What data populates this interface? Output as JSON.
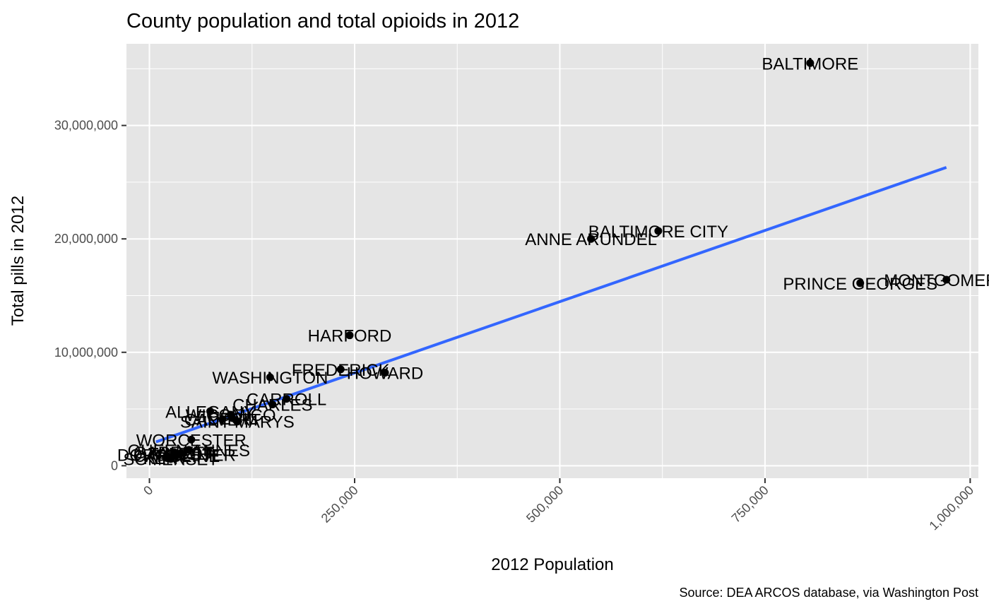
{
  "chart_data": {
    "type": "scatter",
    "title": "County population and total opioids in 2012",
    "xlabel": "2012 Population",
    "ylabel": "Total pills in 2012",
    "caption": "Source: DEA ARCOS database, via Washington Post",
    "xlim": [
      -28000,
      1010000
    ],
    "ylim": [
      -1100000,
      37200000
    ],
    "x_ticks": [
      0,
      250000,
      500000,
      750000,
      1000000
    ],
    "x_tick_labels": [
      "0",
      "250,000",
      "500,000",
      "750,000",
      "1,000,000"
    ],
    "y_ticks": [
      0,
      10000000,
      20000000,
      30000000
    ],
    "y_tick_labels": [
      "0",
      "10,000,000",
      "20,000,000",
      "30,000,000"
    ],
    "grid": true,
    "colors": {
      "panel": "#e5e5e5",
      "grid": "#ffffff",
      "points": "#000000",
      "trend": "#3366ff"
    },
    "trend_line": {
      "x": [
        8000,
        971000
      ],
      "y": [
        2100000,
        26300000
      ]
    },
    "points": [
      {
        "label": "BALTIMORE",
        "x": 805000,
        "y": 35500000
      },
      {
        "label": "BALTIMORE CITY",
        "x": 620000,
        "y": 20700000
      },
      {
        "label": "ANNE ARUNDEL",
        "x": 538000,
        "y": 20000000
      },
      {
        "label": "PRINCE GEORGES",
        "x": 866000,
        "y": 16100000
      },
      {
        "label": "MONTGOMERY",
        "x": 971000,
        "y": 16400000
      },
      {
        "label": "HARFORD",
        "x": 244000,
        "y": 11500000
      },
      {
        "label": "FREDERICK",
        "x": 233000,
        "y": 8500000
      },
      {
        "label": "HOWARD",
        "x": 287000,
        "y": 8200000
      },
      {
        "label": "WASHINGTON",
        "x": 147000,
        "y": 7800000
      },
      {
        "label": "CARROLL",
        "x": 167000,
        "y": 5900000
      },
      {
        "label": "CHARLES",
        "x": 150000,
        "y": 5400000
      },
      {
        "label": "ALLEGANY",
        "x": 74000,
        "y": 4800000
      },
      {
        "label": "WICOMICO",
        "x": 99000,
        "y": 4500000
      },
      {
        "label": "CECIL",
        "x": 101000,
        "y": 4200000
      },
      {
        "label": "SAINT MARYS",
        "x": 107000,
        "y": 3900000
      },
      {
        "label": "CALVERT",
        "x": 89000,
        "y": 4100000
      },
      {
        "label": "WORCESTER",
        "x": 51000,
        "y": 2300000
      },
      {
        "label": "QUEEN ANNES",
        "x": 48000,
        "y": 1400000
      },
      {
        "label": "GARRETT",
        "x": 30000,
        "y": 1200000
      },
      {
        "label": "DORCHESTER",
        "x": 33000,
        "y": 1000000
      },
      {
        "label": "CAROLINE",
        "x": 33000,
        "y": 900000
      },
      {
        "label": "TALBOT",
        "x": 38000,
        "y": 1100000
      },
      {
        "label": "KENT",
        "x": 20000,
        "y": 700000
      },
      {
        "label": "SOMERSET",
        "x": 26000,
        "y": 600000
      }
    ]
  }
}
